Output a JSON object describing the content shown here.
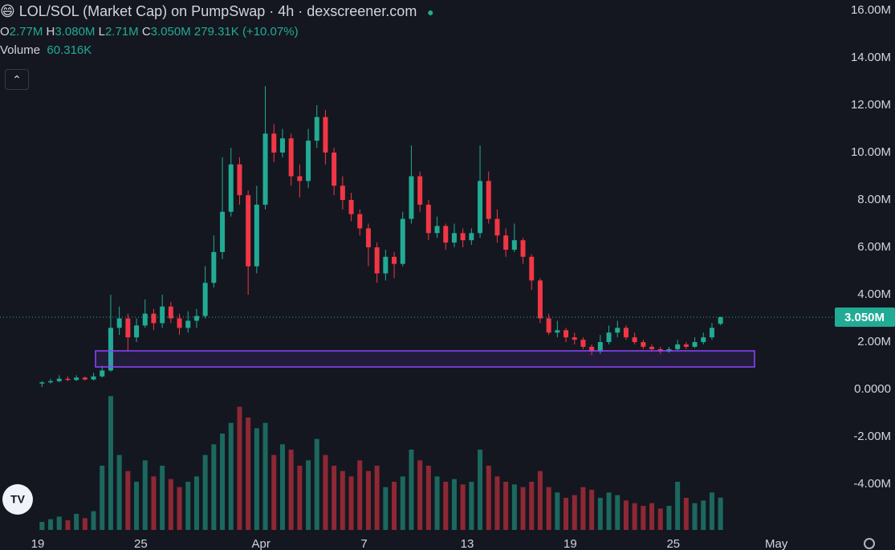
{
  "chart_data": {
    "type": "candlestick",
    "title": "LOL/SOL (Market Cap) on PumpSwap · 4h · dexscreener.com",
    "ohlc_legend": {
      "o_label": "O",
      "o": "2.77M",
      "h_label": "H",
      "h": "3.080M",
      "l_label": "L",
      "l": "2.71M",
      "c_label": "C",
      "c": "3.050M",
      "change": "279.31K (+10.07%)"
    },
    "volume_legend": {
      "label": "Volume",
      "value": "60.316K"
    },
    "xticks": [
      "19",
      "25",
      "Apr",
      "7",
      "13",
      "19",
      "25",
      "May"
    ],
    "open": [
      0.25,
      0.3,
      0.35,
      0.45,
      0.4,
      0.5,
      0.42,
      0.55,
      0.8,
      2.6,
      3.0,
      2.2,
      2.7,
      3.2,
      2.8,
      3.5,
      3.0,
      2.6,
      2.9,
      3.1,
      4.5,
      5.8,
      7.5,
      9.5,
      8.2,
      5.2,
      7.8,
      10.8,
      10.0,
      10.6,
      9.0,
      8.8,
      10.5,
      11.5,
      10.0,
      8.6,
      8.0,
      7.4,
      6.8,
      6.0,
      4.9,
      5.6,
      5.3,
      7.2,
      9.0,
      7.8,
      6.6,
      6.9,
      6.2,
      6.6,
      6.3,
      6.6,
      8.8,
      7.2,
      6.5,
      5.9,
      6.3,
      5.6,
      4.6,
      3.0,
      2.4,
      2.5,
      2.2,
      2.1,
      1.8,
      1.6,
      2.0,
      2.4,
      2.6,
      2.2,
      2.0,
      1.8,
      1.7,
      1.6,
      1.7,
      1.9,
      1.8,
      2.0,
      2.2,
      2.77
    ],
    "high": [
      0.35,
      0.45,
      0.6,
      0.55,
      0.6,
      0.55,
      0.7,
      1.0,
      4.0,
      3.5,
      3.2,
      3.0,
      3.8,
      3.4,
      4.0,
      3.7,
      3.2,
      3.3,
      3.4,
      5.2,
      6.5,
      9.8,
      10.2,
      9.8,
      8.4,
      8.6,
      12.8,
      11.2,
      11.0,
      10.8,
      9.5,
      11.0,
      12.0,
      11.8,
      10.2,
      9.0,
      8.3,
      7.6,
      7.0,
      6.2,
      5.9,
      5.8,
      7.5,
      10.3,
      9.2,
      8.0,
      7.3,
      7.0,
      7.0,
      6.8,
      6.8,
      10.3,
      9.2,
      7.6,
      6.8,
      7.0,
      6.4,
      5.7,
      4.7,
      3.2,
      2.9,
      2.6,
      2.4,
      2.2,
      1.9,
      2.3,
      2.7,
      2.9,
      2.7,
      2.4,
      2.1,
      1.9,
      1.8,
      1.8,
      2.1,
      2.0,
      2.2,
      2.4,
      2.8,
      3.08
    ],
    "low": [
      0.1,
      0.25,
      0.3,
      0.35,
      0.35,
      0.38,
      0.38,
      0.5,
      0.75,
      2.3,
      1.6,
      2.0,
      2.6,
      2.5,
      2.6,
      2.8,
      2.3,
      2.4,
      2.6,
      3.0,
      4.3,
      5.5,
      7.3,
      7.8,
      4.0,
      4.9,
      7.6,
      9.6,
      9.8,
      8.6,
      8.1,
      8.5,
      10.2,
      9.5,
      8.2,
      7.6,
      7.1,
      6.5,
      5.2,
      4.5,
      4.6,
      4.7,
      5.2,
      7.0,
      7.5,
      6.3,
      6.4,
      5.9,
      6.0,
      6.0,
      6.1,
      6.4,
      7.0,
      6.2,
      5.6,
      5.8,
      5.3,
      4.2,
      2.8,
      2.3,
      2.2,
      2.0,
      1.9,
      1.7,
      1.45,
      1.5,
      1.9,
      2.2,
      2.1,
      1.9,
      1.7,
      1.6,
      1.5,
      1.55,
      1.65,
      1.7,
      1.75,
      1.9,
      2.1,
      2.71
    ],
    "close": [
      0.3,
      0.35,
      0.45,
      0.4,
      0.5,
      0.42,
      0.55,
      0.8,
      2.6,
      3.0,
      2.2,
      2.7,
      3.2,
      2.8,
      3.5,
      3.0,
      2.6,
      2.9,
      3.1,
      4.5,
      5.8,
      7.5,
      9.5,
      8.2,
      5.2,
      7.8,
      10.8,
      10.0,
      10.6,
      9.0,
      8.8,
      10.5,
      11.5,
      10.0,
      8.6,
      8.0,
      7.4,
      6.8,
      6.0,
      4.9,
      5.6,
      5.3,
      7.2,
      9.0,
      7.8,
      6.6,
      6.9,
      6.2,
      6.6,
      6.3,
      6.6,
      8.8,
      7.2,
      6.5,
      5.9,
      6.3,
      5.6,
      4.6,
      3.0,
      2.4,
      2.5,
      2.2,
      2.1,
      1.8,
      1.6,
      2.0,
      2.4,
      2.6,
      2.2,
      2.0,
      1.8,
      1.7,
      1.6,
      1.7,
      1.9,
      1.8,
      2.0,
      2.2,
      2.6,
      3.05
    ],
    "volume": [
      15,
      20,
      25,
      18,
      30,
      22,
      35,
      120,
      250,
      140,
      110,
      90,
      130,
      100,
      120,
      95,
      80,
      90,
      100,
      140,
      160,
      180,
      200,
      230,
      210,
      190,
      200,
      140,
      160,
      150,
      120,
      130,
      170,
      140,
      120,
      110,
      100,
      130,
      110,
      120,
      80,
      90,
      100,
      150,
      130,
      120,
      100,
      90,
      95,
      85,
      90,
      150,
      120,
      100,
      90,
      85,
      80,
      90,
      110,
      80,
      70,
      60,
      65,
      80,
      75,
      60,
      70,
      65,
      55,
      50,
      45,
      50,
      40,
      45,
      90,
      60,
      50,
      55,
      70,
      60.316
    ],
    "vlim": [
      0,
      255
    ],
    "ylim": [
      -5.93,
      16.44
    ],
    "yticks": [
      {
        "value": 16,
        "label": "16.00M"
      },
      {
        "value": 14,
        "label": "14.00M"
      },
      {
        "value": 12,
        "label": "12.00M"
      },
      {
        "value": 10,
        "label": "10.00M"
      },
      {
        "value": 8,
        "label": "8.00M"
      },
      {
        "value": 6,
        "label": "6.00M"
      },
      {
        "value": 4,
        "label": "4.00M"
      },
      {
        "value": 2,
        "label": "2.00M"
      },
      {
        "value": 0,
        "label": "0.0000"
      },
      {
        "value": -2,
        "label": "-2.00M"
      },
      {
        "value": -4,
        "label": "-4.00M"
      }
    ],
    "price_label": "3.050M",
    "zone": [
      0.95,
      1.63
    ],
    "up_color": "#22ab94",
    "down_color": "#f23645",
    "zone_color": "#8e44ff"
  }
}
